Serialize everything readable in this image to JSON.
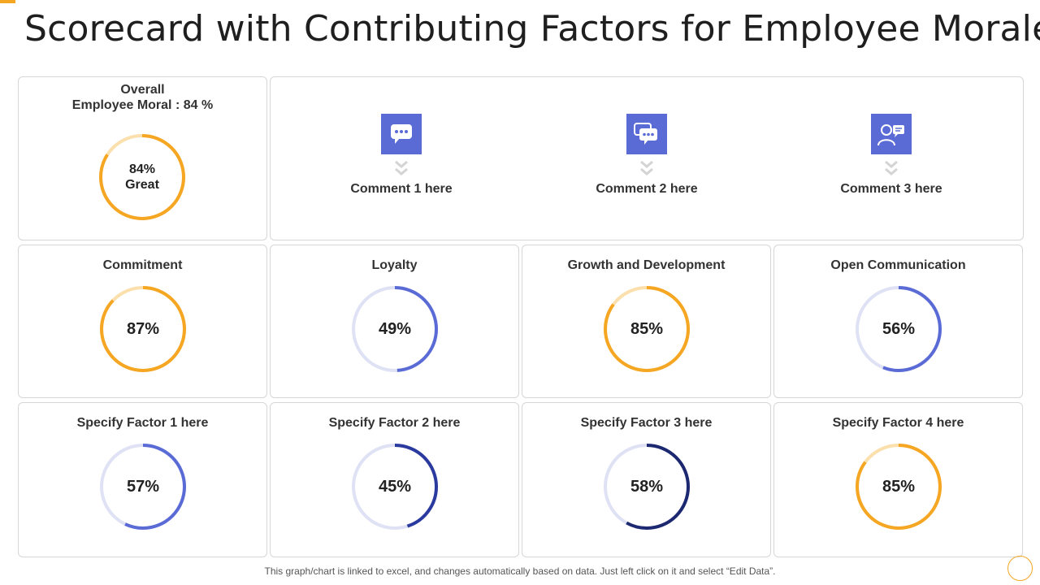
{
  "title": "Scorecard with Contributing Factors for Employee Morale",
  "overall": {
    "title_line1": "Overall",
    "title_line2": "Employee Moral : 84 %",
    "value_text": "84%",
    "status_text": "Great",
    "value": 84,
    "color": "#f5a623",
    "track_color": "#fbe0ad"
  },
  "comments": [
    {
      "text": "Comment 1 here",
      "icon": "chat-bubble-icon"
    },
    {
      "text": "Comment 2 here",
      "icon": "chat-bubbles-icon"
    },
    {
      "text": "Comment 3 here",
      "icon": "user-chat-icon"
    }
  ],
  "colors": {
    "accent": "#f5a623",
    "accent_track": "#fbe0ad",
    "blue": "#5a6bd6",
    "blue_track": "#dfe2f4",
    "dark_blue": "#2b3a9e",
    "navy": "#1c2870",
    "icon_bg": "#5a6bd6",
    "chevron": "#d4d4d4"
  },
  "chart_data": {
    "type": "gauge",
    "unit": "%",
    "items": [
      {
        "label": "Commitment",
        "value": 87,
        "text": "87%",
        "color": "#f5a623",
        "track": "#fbe0ad"
      },
      {
        "label": "Loyalty",
        "value": 49,
        "text": "49%",
        "color": "#5a6bd6",
        "track": "#dfe2f4"
      },
      {
        "label": "Growth and Development",
        "value": 85,
        "text": "85%",
        "color": "#f5a623",
        "track": "#fbe0ad"
      },
      {
        "label": "Open Communication",
        "value": 56,
        "text": "56%",
        "color": "#5a6bd6",
        "track": "#dfe2f4"
      },
      {
        "label": "Specify Factor 1 here",
        "value": 57,
        "text": "57%",
        "color": "#5a6bd6",
        "track": "#dfe2f4"
      },
      {
        "label": "Specify Factor 2 here",
        "value": 45,
        "text": "45%",
        "color": "#2b3a9e",
        "track": "#dfe2f4"
      },
      {
        "label": "Specify Factor 3 here",
        "value": 58,
        "text": "58%",
        "color": "#1c2870",
        "track": "#dfe2f4"
      },
      {
        "label": "Specify Factor 4 here",
        "value": 85,
        "text": "85%",
        "color": "#f5a623",
        "track": "#fbe0ad"
      }
    ]
  },
  "footer": "This graph/chart is linked to excel, and changes automatically based on data. Just left click on it and select “Edit Data”."
}
